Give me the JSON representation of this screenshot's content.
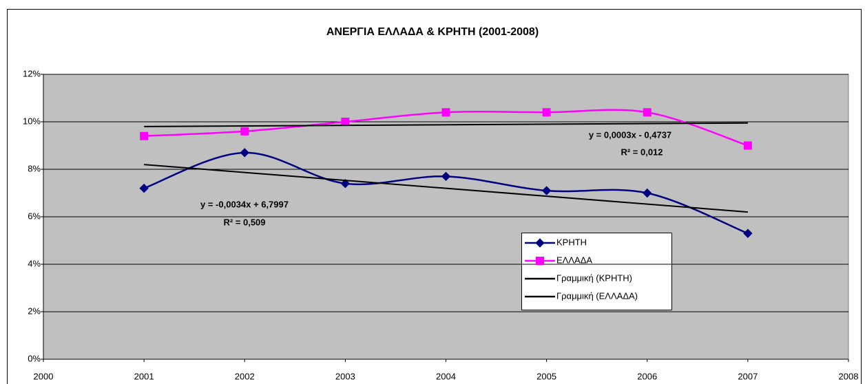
{
  "chart_data": {
    "type": "line",
    "title": "ΑΝΕΡΓΙΑ ΕΛΛΑΔΑ & ΚΡΗΤΗ (2001-2008)",
    "xlim": [
      2000,
      2008
    ],
    "xticks": [
      2000,
      2001,
      2002,
      2003,
      2004,
      2005,
      2006,
      2007,
      2008
    ],
    "ylim": [
      0,
      12
    ],
    "yticks": [
      {
        "value": 0,
        "label": "0%"
      },
      {
        "value": 2,
        "label": "2%"
      },
      {
        "value": 4,
        "label": "4%"
      },
      {
        "value": 6,
        "label": "6%"
      },
      {
        "value": 8,
        "label": "8%"
      },
      {
        "value": 10,
        "label": "10%"
      },
      {
        "value": 12,
        "label": "12%"
      }
    ],
    "grid": true,
    "legend": "right",
    "series": [
      {
        "name": "ΚΡΗΤΗ",
        "color": "#000080",
        "marker": "diamond",
        "smooth": true,
        "x": [
          2001,
          2002,
          2003,
          2004,
          2005,
          2006,
          2007
        ],
        "values": [
          7.2,
          8.7,
          7.4,
          7.7,
          7.1,
          7.0,
          5.3
        ]
      },
      {
        "name": "ΕΛΛΑΔΑ",
        "color": "#ff00ff",
        "marker": "square",
        "smooth": true,
        "x": [
          2001,
          2002,
          2003,
          2004,
          2005,
          2006,
          2007
        ],
        "values": [
          9.4,
          9.6,
          10.0,
          10.4,
          10.4,
          10.4,
          9.0
        ]
      },
      {
        "name": "Γραμμική (ΚΡΗΤΗ)",
        "color": "#000000",
        "marker": "none",
        "smooth": false,
        "x": [
          2001,
          2007
        ],
        "values": [
          8.2,
          6.2
        ]
      },
      {
        "name": "Γραμμική (ΕΛΛΑΔΑ)",
        "color": "#000000",
        "marker": "none",
        "smooth": false,
        "x": [
          2001,
          2007
        ],
        "values": [
          9.8,
          9.95
        ]
      }
    ],
    "annotations": [
      "y = 0,0003x - 0,4737",
      "R² = 0,012",
      "y = -0,0034x + 6,7997",
      "R² = 0,509"
    ]
  }
}
